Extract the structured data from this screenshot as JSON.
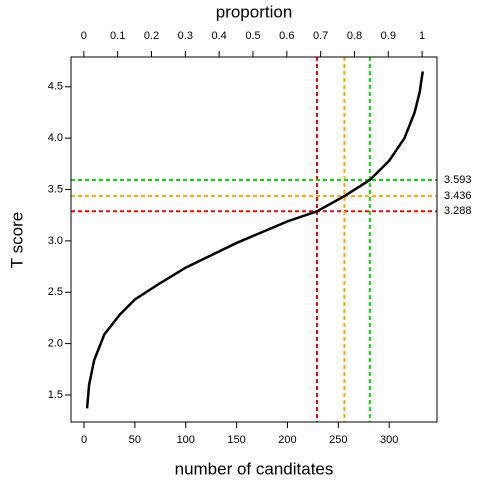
{
  "chart_data": {
    "type": "line",
    "xlabel": "number of canditates",
    "ylabel": "T score",
    "x2label": "proportion",
    "x": [
      3,
      5,
      10,
      20,
      35,
      50,
      75,
      100,
      150,
      200,
      229,
      256,
      281,
      300,
      315,
      325,
      330,
      333
    ],
    "series": [
      {
        "color": "#000000",
        "values": [
          1.37,
          1.6,
          1.84,
          2.09,
          2.28,
          2.43,
          2.59,
          2.74,
          2.98,
          3.19,
          3.288,
          3.436,
          3.593,
          3.78,
          4.0,
          4.25,
          4.45,
          4.65
        ]
      }
    ],
    "xlim": [
      -12.8,
      347
    ],
    "xticks": [
      0,
      50,
      100,
      150,
      200,
      250,
      300
    ],
    "x2lim": [
      -0.038,
      1.044
    ],
    "x2ticks": [
      0,
      0.1,
      0.2,
      0.3,
      0.4,
      0.5,
      0.6,
      0.7,
      0.8,
      0.9,
      1
    ],
    "ylim": [
      1.237,
      4.79
    ],
    "yticks": [
      1.5,
      {
        "value": 2,
        "label": "2.0"
      },
      2.5,
      {
        "value": 3,
        "label": "3.0"
      },
      3.5,
      {
        "value": 4,
        "label": "4.0"
      },
      4.5
    ],
    "reference_lines": [
      {
        "color": "#ff0000",
        "x": 229,
        "y": 3.288
      },
      {
        "color": "#ffa500",
        "x": 256,
        "y": 3.436
      },
      {
        "color": "#00e000",
        "x": 281,
        "y": 3.593
      }
    ]
  }
}
